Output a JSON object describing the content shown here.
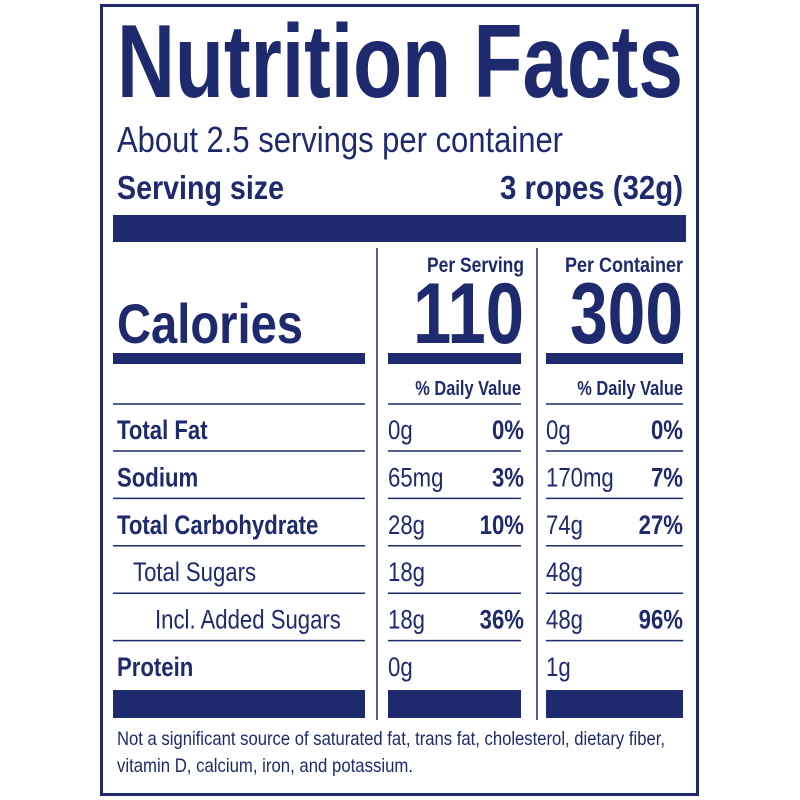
{
  "title": "Nutrition Facts",
  "servings": "About 2.5 servings per container",
  "serving_size": {
    "label": "Serving size",
    "value": "3 ropes (32g)"
  },
  "calories_label": "Calories",
  "columns": [
    {
      "header": "Per Serving",
      "calories": 110,
      "dv_header": "% Daily Value"
    },
    {
      "header": "Per Container",
      "calories": 300,
      "dv_header": "% Daily Value"
    }
  ],
  "rows": [
    {
      "name": "Total Fat",
      "values": [
        {
          "amount": "0g",
          "dv": "0%"
        },
        {
          "amount": "0g",
          "dv": "0%"
        }
      ]
    },
    {
      "name": "Sodium",
      "values": [
        {
          "amount": "65mg",
          "dv": "3%"
        },
        {
          "amount": "170mg",
          "dv": "7%"
        }
      ]
    },
    {
      "name": "Total Carbohydrate",
      "values": [
        {
          "amount": "28g",
          "dv": "10%"
        },
        {
          "amount": "74g",
          "dv": "27%"
        }
      ]
    },
    {
      "name": "Total Sugars",
      "values": [
        {
          "amount": "18g"
        },
        {
          "amount": "48g"
        }
      ]
    },
    {
      "name": "Incl. Added Sugars",
      "values": [
        {
          "amount": "18g",
          "dv": "36%"
        },
        {
          "amount": "48g",
          "dv": "96%"
        }
      ]
    },
    {
      "name": "Protein",
      "values": [
        {
          "amount": "0g"
        },
        {
          "amount": "1g"
        }
      ]
    }
  ],
  "footnote": [
    "Not a significant source of saturated fat, trans fat, cholesterol, dietary fiber,",
    "vitamin D, calcium, iron, and potassium."
  ]
}
